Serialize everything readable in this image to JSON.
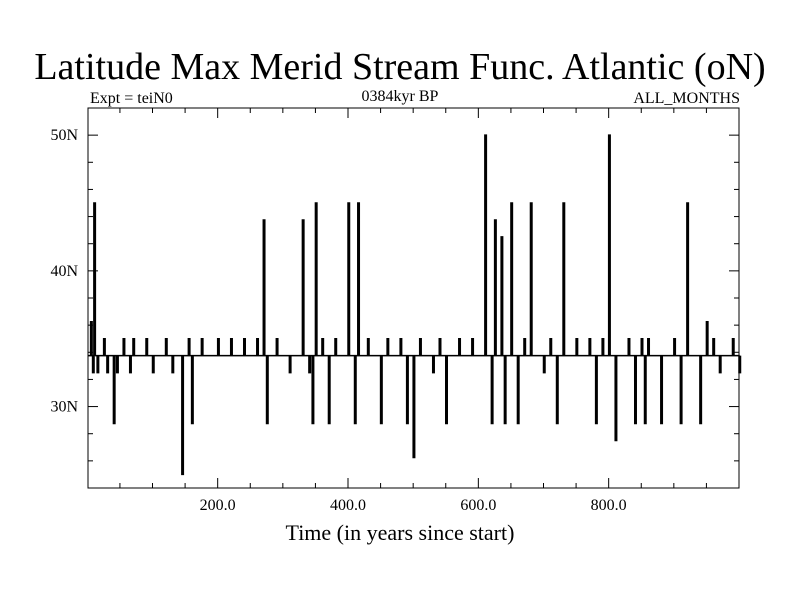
{
  "chart_data": {
    "type": "line",
    "title": "Latitude Max Merid Stream Func. Atlantic (oN)",
    "subtitle_left": "Expt = teiN0",
    "subtitle_center": "0384kyr BP",
    "subtitle_right": "ALL_MONTHS",
    "xlabel": "Time (in years since start)",
    "ylabel": "",
    "xlim": [
      1,
      1000
    ],
    "ylim": [
      24,
      52
    ],
    "x_ticks": [
      200,
      400,
      600,
      800
    ],
    "x_tick_labels": [
      "200.0",
      "400.0",
      "600.0",
      "800.0"
    ],
    "y_ticks": [
      30,
      40,
      50
    ],
    "y_tick_labels": [
      "30N",
      "40N",
      "50N"
    ],
    "baseline": 33.75,
    "grid": false,
    "series": [
      {
        "color": "#000000",
        "x": [
          1,
          5,
          8,
          10,
          12,
          15,
          20,
          25,
          30,
          35,
          40,
          45,
          50,
          55,
          60,
          65,
          70,
          80,
          90,
          100,
          110,
          120,
          130,
          140,
          145,
          150,
          155,
          160,
          170,
          175,
          180,
          200,
          210,
          220,
          230,
          240,
          250,
          260,
          270,
          275,
          280,
          290,
          300,
          310,
          320,
          330,
          340,
          345,
          350,
          355,
          360,
          370,
          380,
          390,
          400,
          410,
          415,
          420,
          430,
          440,
          450,
          460,
          470,
          480,
          490,
          500,
          510,
          520,
          530,
          540,
          550,
          560,
          570,
          580,
          590,
          600,
          610,
          620,
          625,
          630,
          635,
          640,
          645,
          650,
          655,
          660,
          670,
          675,
          680,
          690,
          700,
          710,
          720,
          730,
          740,
          750,
          760,
          770,
          775,
          780,
          790,
          800,
          810,
          820,
          830,
          840,
          845,
          850,
          855,
          860,
          870,
          880,
          890,
          900,
          910,
          920,
          930,
          940,
          950,
          955,
          960,
          970,
          980,
          990,
          1000
        ],
        "values": [
          33.75,
          36.25,
          32.5,
          45,
          33.75,
          32.5,
          33.75,
          35,
          32.5,
          33.75,
          28.75,
          32.5,
          33.75,
          35,
          33.75,
          32.5,
          35,
          33.75,
          35,
          32.5,
          33.75,
          35,
          32.5,
          33.75,
          25,
          33.75,
          35,
          28.75,
          33.75,
          35,
          33.75,
          35,
          33.75,
          35,
          33.75,
          35,
          33.75,
          35,
          43.75,
          28.75,
          33.75,
          35,
          33.75,
          32.5,
          33.75,
          43.75,
          32.5,
          28.75,
          45,
          33.75,
          35,
          28.75,
          35,
          33.75,
          45,
          28.75,
          45,
          33.75,
          35,
          33.75,
          28.75,
          35,
          33.75,
          35,
          28.75,
          26.25,
          35,
          33.75,
          32.5,
          35,
          28.75,
          33.75,
          35,
          33.75,
          35,
          33.75,
          50,
          28.75,
          43.75,
          33.75,
          42.5,
          28.75,
          33.75,
          45,
          33.75,
          28.75,
          35,
          33.75,
          45,
          33.75,
          32.5,
          35,
          28.75,
          45,
          33.75,
          35,
          33.75,
          35,
          33.75,
          28.75,
          35,
          50,
          27.5,
          33.75,
          35,
          28.75,
          33.75,
          35,
          28.75,
          35,
          33.75,
          28.75,
          33.75,
          35,
          28.75,
          45,
          33.75,
          28.75,
          36.25,
          33.75,
          35,
          32.5,
          33.75,
          35,
          32.5
        ]
      }
    ]
  }
}
